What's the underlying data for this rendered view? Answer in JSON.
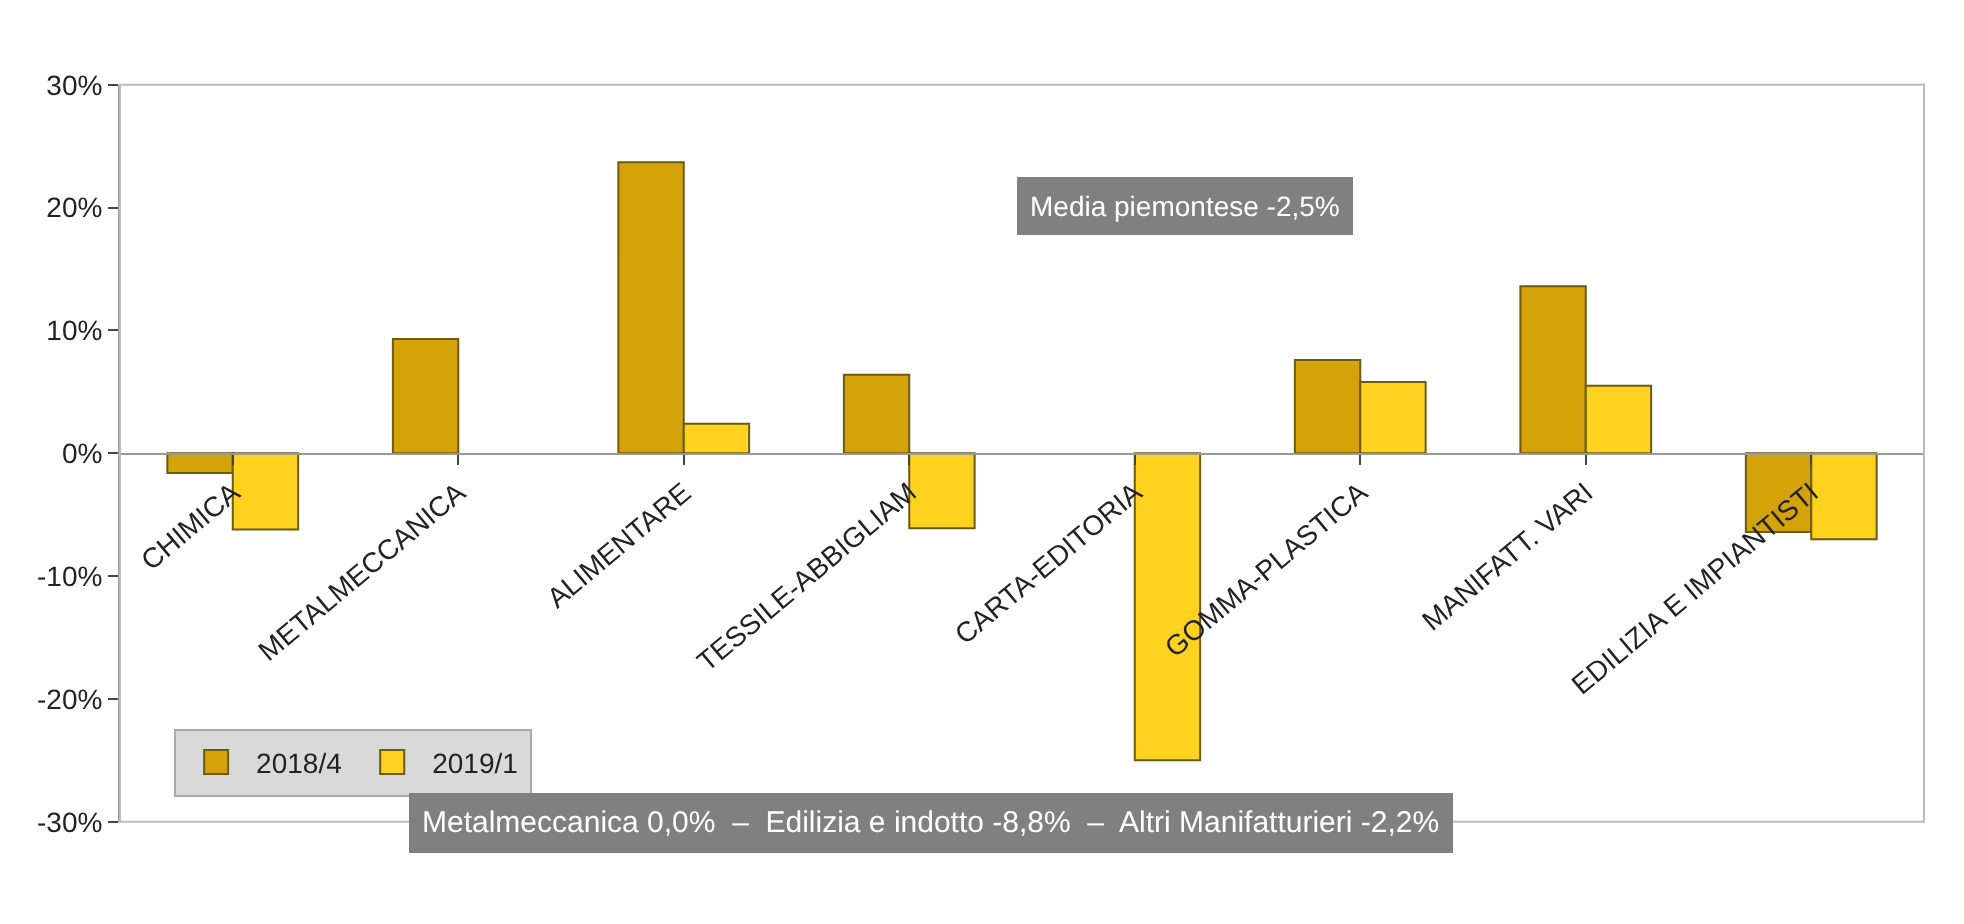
{
  "chart_data": {
    "type": "bar",
    "categories": [
      "CHIMICA",
      "METALMECCANICA",
      "ALIMENTARE",
      "TESSILE-ABBIGLIAM",
      "CARTA-EDITORIA",
      "GOMMA-PLASTICA",
      "MANIFATT. VARI",
      "EDILIZIA E IMPIANTISTI"
    ],
    "series": [
      {
        "name": "2018/4",
        "color": "#d4a30a",
        "values": [
          -1.6,
          9.3,
          23.7,
          6.4,
          null,
          7.6,
          13.6,
          -6.4
        ]
      },
      {
        "name": "2019/1",
        "color": "#ffd21f",
        "values": [
          -6.2,
          null,
          2.4,
          -6.1,
          -25.0,
          5.8,
          5.5,
          -7.0
        ]
      }
    ],
    "ylim": [
      -30,
      30
    ],
    "yticks": [
      {
        "value": -30,
        "label": "-30%"
      },
      {
        "value": -20,
        "label": "-20%"
      },
      {
        "value": -10,
        "label": "-10%"
      },
      {
        "value": 0,
        "label": "0%"
      },
      {
        "value": 10,
        "label": "10%"
      },
      {
        "value": 20,
        "label": "20%"
      },
      {
        "value": 30,
        "label": "30%"
      }
    ],
    "legend": "bottom left",
    "annotations": [
      "Media piemontese -2,5%",
      "Metalmeccanica 0,0%  –  Edilizia e indotto -8,8%  –  Altri Manifatturieri -2,2%"
    ]
  }
}
